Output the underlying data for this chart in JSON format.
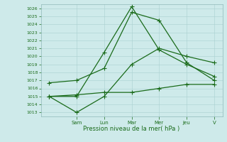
{
  "title": "",
  "xlabel": "Pression niveau de la mer( hPa )",
  "ylabel": "",
  "background_color": "#ceeaea",
  "grid_color": "#aad0d0",
  "line_color": "#1a6b1a",
  "ylim": [
    1012.5,
    1026.5
  ],
  "yticks": [
    1013,
    1014,
    1015,
    1016,
    1017,
    1018,
    1019,
    1020,
    1021,
    1022,
    1023,
    1024,
    1025,
    1026
  ],
  "x_positions": [
    0,
    1,
    2,
    3,
    4,
    5,
    6
  ],
  "line1": [
    1015.0,
    1015.0,
    1020.5,
    1026.2,
    1020.8,
    1019.0,
    1017.5
  ],
  "line2": [
    1016.7,
    1017.0,
    1018.5,
    1025.5,
    1024.5,
    1019.2,
    1017.0
  ],
  "line3": [
    1015.0,
    1013.0,
    1015.0,
    1019.0,
    1021.0,
    1020.0,
    1019.2
  ],
  "line4": [
    1015.0,
    1015.2,
    1015.5,
    1015.5,
    1016.0,
    1016.5,
    1016.5
  ],
  "marker": "+",
  "marker_size": 4,
  "line_width": 0.9,
  "x_tick_positions": [
    1,
    2,
    3,
    4,
    5,
    6
  ],
  "x_tick_labels": [
    "Sam",
    "Lun",
    "Mar",
    "Mer",
    "Jeu",
    "V"
  ]
}
